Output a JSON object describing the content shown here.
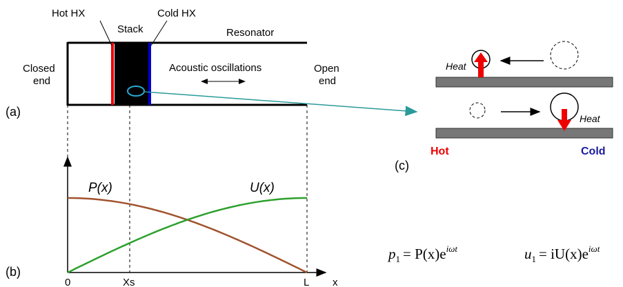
{
  "panel_a": {
    "label": "(a)",
    "hot_hx": "Hot HX",
    "stack": "Stack",
    "cold_hx": "Cold HX",
    "resonator": "Resonator",
    "closed_end": [
      "Closed",
      "end"
    ],
    "acoustic": "Acoustic oscillations",
    "open_end": [
      "Open",
      "end"
    ]
  },
  "panel_b": {
    "label": "(b)",
    "p_curve": "P(x)",
    "u_curve": "U(x)",
    "x_ticks": [
      "0",
      "Xs",
      "L"
    ],
    "x_axis": "x"
  },
  "panel_c": {
    "label": "(c)",
    "heat_top": "Heat",
    "heat_bottom": "Heat",
    "hot": "Hot",
    "cold": "Cold"
  },
  "equations": [
    {
      "var": "p",
      "sub": "1",
      "rhs": "= P(x)e",
      "sup": "iωt"
    },
    {
      "var": "u",
      "sub": "1",
      "rhs": "= iU(x)e",
      "sup": "iωt"
    }
  ]
}
